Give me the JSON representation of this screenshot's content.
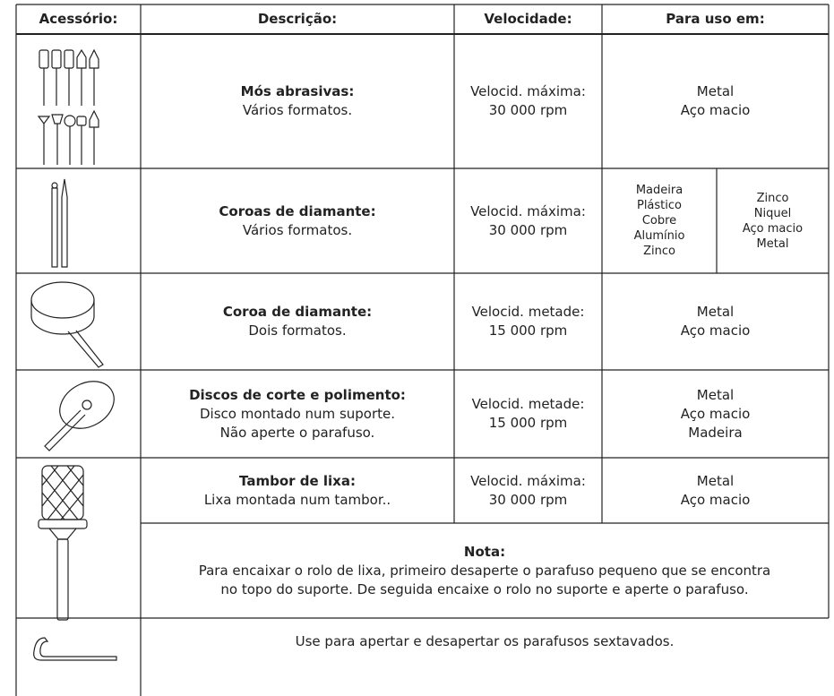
{
  "header": [
    "Acessório:",
    "Descrição:",
    "Velocidade:",
    "Para uso em:"
  ],
  "rows": [
    {
      "title": "Mós abrasivas:",
      "description": [
        "Vários formatos."
      ],
      "speed": [
        "Velocid. máxima:",
        "30 000 rpm"
      ],
      "use": [
        "Metal",
        "Aço macio"
      ]
    },
    {
      "title": "Coroas de diamante:",
      "description": [
        "Vários formatos."
      ],
      "speed": [
        "Velocid. máxima:",
        "30 000 rpm"
      ],
      "use_left": [
        "Madeira",
        "Plástico",
        "Cobre",
        "Alumínio",
        "Zinco"
      ],
      "use_right": [
        "Zinco",
        "Niquel",
        "Aço macio",
        "Metal"
      ]
    },
    {
      "title": "Coroa de diamante:",
      "description": [
        "Dois formatos."
      ],
      "speed": [
        "Velocid. metade:",
        "15 000 rpm"
      ],
      "use": [
        "Metal",
        "Aço macio"
      ]
    },
    {
      "title": "Discos de corte e polimento:",
      "description": [
        "Disco montado num suporte.",
        "Não aperte o parafuso."
      ],
      "speed": [
        "Velocid. metade:",
        "15 000 rpm"
      ],
      "use": [
        "Metal",
        "Aço macio",
        "Madeira"
      ]
    },
    {
      "title": "Tambor de lixa:",
      "description": [
        "Lixa montada num tambor.."
      ],
      "speed": [
        "Velocid. máxima:",
        "30 000 rpm"
      ],
      "use": [
        "Metal",
        "Aço macio"
      ]
    }
  ],
  "note": {
    "title": "Nota:",
    "lines": [
      "Para encaixar o rolo de lixa, primeiro desaperte o parafuso pequeno que se encontra",
      "no topo do suporte.  De seguida encaixe o rolo no suporte e aperte o parafuso."
    ]
  },
  "last_row": "Use para apertar e desapertar os parafusos sextavados."
}
